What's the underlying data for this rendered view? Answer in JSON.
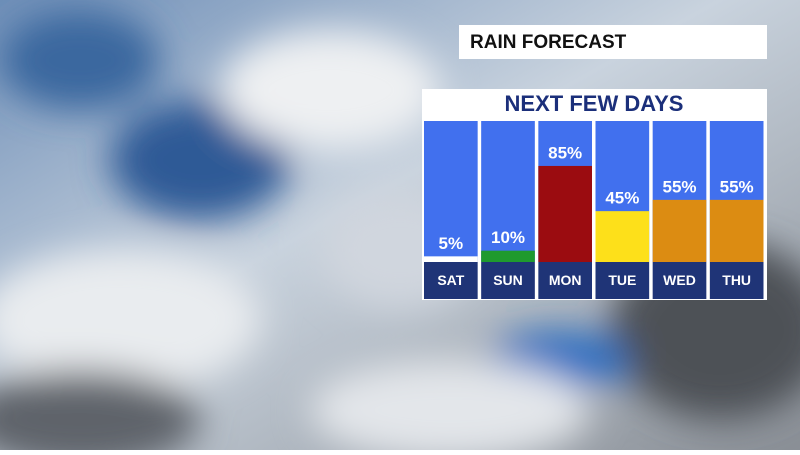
{
  "chart_data": {
    "type": "bar",
    "title": "RAIN FORECAST",
    "subtitle": "NEXT FEW DAYS",
    "categories": [
      "SAT",
      "SUN",
      "MON",
      "TUE",
      "WED",
      "THU"
    ],
    "values": [
      5,
      10,
      85,
      45,
      55,
      55
    ],
    "value_labels": [
      "5%",
      "10%",
      "85%",
      "45%",
      "55%",
      "55%"
    ],
    "colors": [
      "#ffffff",
      "#1f9a2e",
      "#9b0c10",
      "#fde01a",
      "#dc8c12",
      "#dc8c12"
    ],
    "ylim": [
      0,
      100
    ]
  }
}
